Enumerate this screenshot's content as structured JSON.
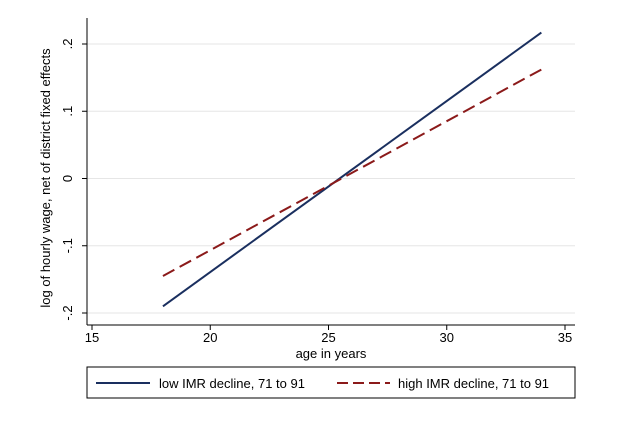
{
  "chart_data": {
    "type": "line",
    "title": "",
    "xlabel": "age in years",
    "ylabel": "log of hourly wage, net of district fixed effects",
    "xlim": [
      15,
      35
    ],
    "ylim": [
      -0.2,
      0.2
    ],
    "xticks": [
      15,
      20,
      25,
      30,
      35
    ],
    "xtick_labels": [
      "15",
      "20",
      "25",
      "30",
      "35"
    ],
    "yticks": [
      -0.2,
      -0.1,
      0,
      0.1,
      0.2
    ],
    "ytick_labels": [
      "-.2",
      "-.1",
      "0",
      ".1",
      ".2"
    ],
    "grid": "horizontal",
    "legend_position": "bottom",
    "series": [
      {
        "name": "low IMR decline, 71 to 91",
        "color": "#1a2f5f",
        "style": "solid",
        "x": [
          18,
          34
        ],
        "y": [
          -0.19,
          0.217
        ]
      },
      {
        "name": "high IMR decline, 71 to 91",
        "color": "#8b1a1a",
        "style": "dashed",
        "x": [
          18,
          34
        ],
        "y": [
          -0.145,
          0.162
        ]
      }
    ]
  }
}
